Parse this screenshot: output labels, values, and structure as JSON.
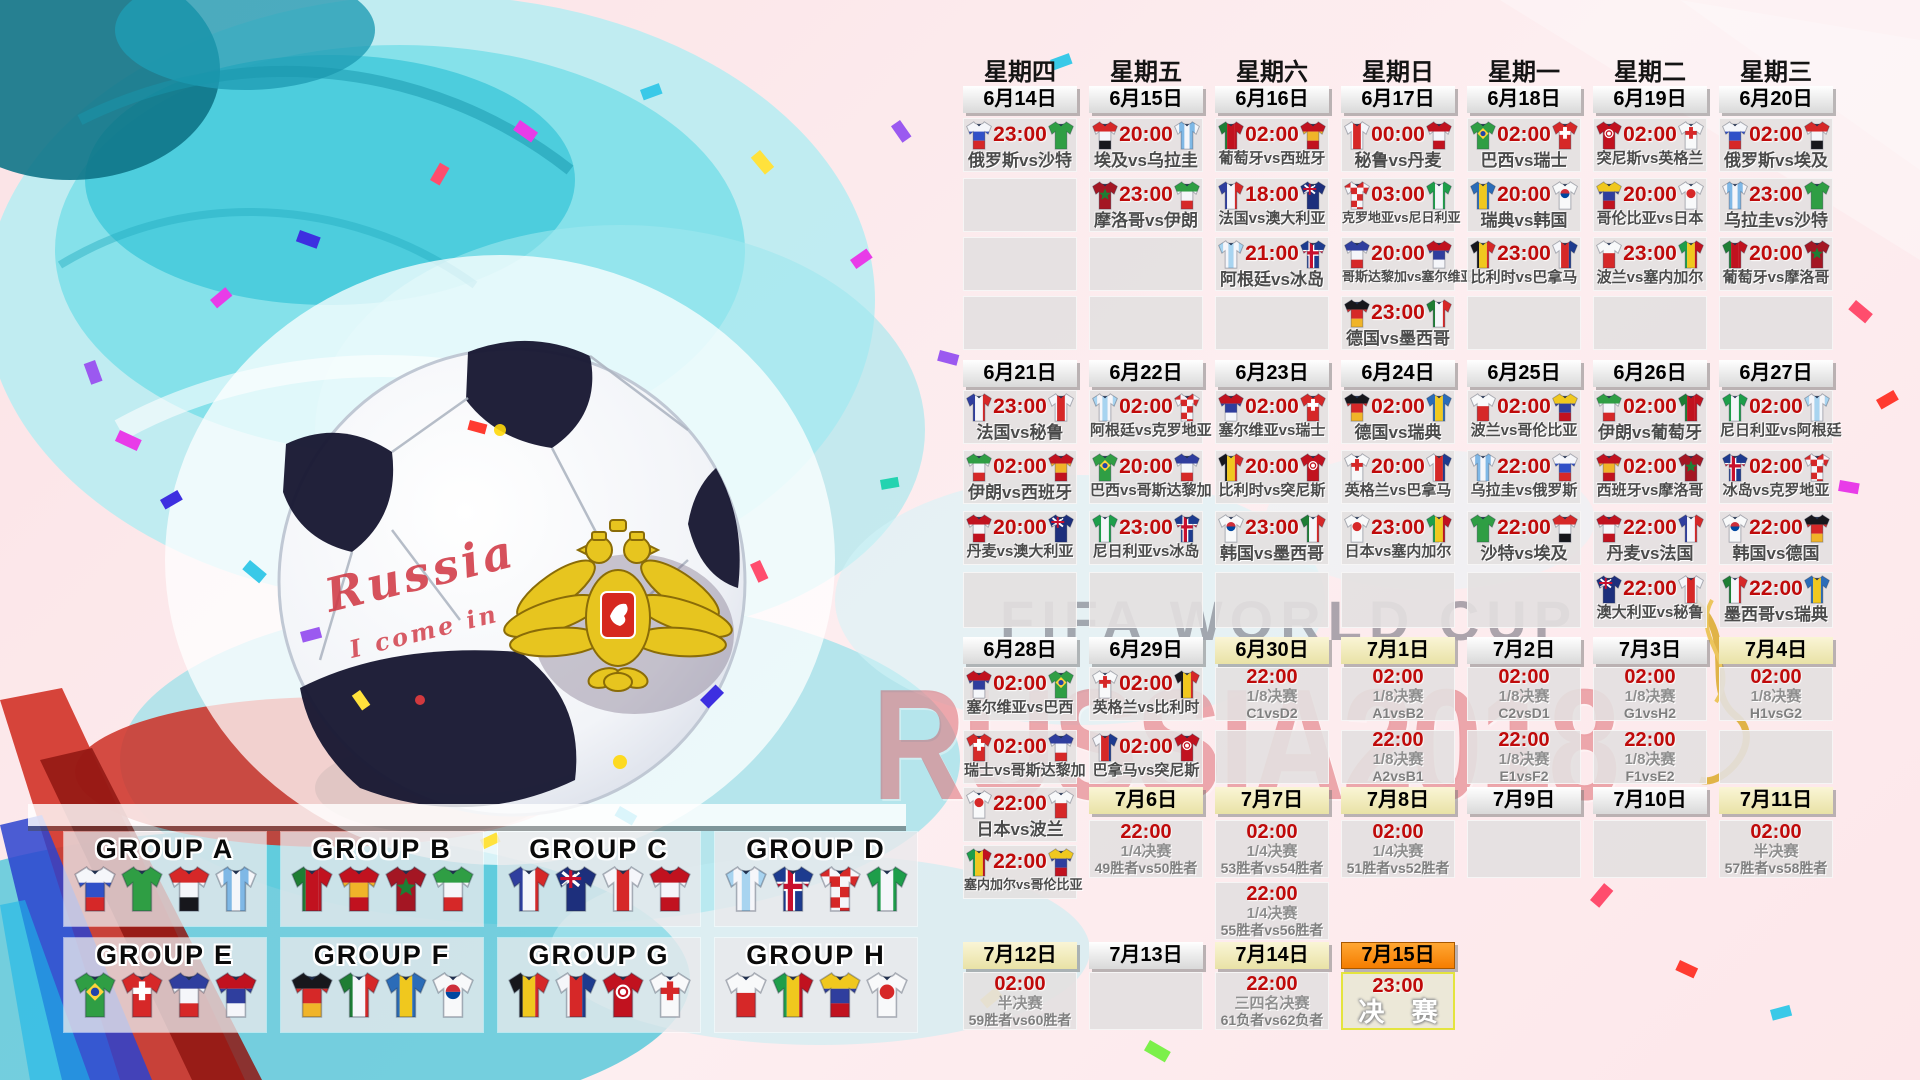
{
  "watermark": {
    "line1": "FIFA WORLD CUP",
    "line2": "RUSSIA2018"
  },
  "ball": {
    "script1": "Russia",
    "script2": "I come in"
  },
  "weekdays": [
    "星期四",
    "星期五",
    "星期六",
    "星期日",
    "星期一",
    "星期二",
    "星期三"
  ],
  "date_bars": [
    {
      "col": 1,
      "row": "b1",
      "label": "6月14日",
      "style": "plain"
    },
    {
      "col": 2,
      "row": "b1",
      "label": "6月15日",
      "style": "plain"
    },
    {
      "col": 3,
      "row": "b1",
      "label": "6月16日",
      "style": "plain"
    },
    {
      "col": 4,
      "row": "b1",
      "label": "6月17日",
      "style": "plain"
    },
    {
      "col": 5,
      "row": "b1",
      "label": "6月18日",
      "style": "plain"
    },
    {
      "col": 6,
      "row": "b1",
      "label": "6月19日",
      "style": "plain"
    },
    {
      "col": 7,
      "row": "b1",
      "label": "6月20日",
      "style": "plain"
    },
    {
      "col": 1,
      "row": "b2",
      "label": "6月21日",
      "style": "plain"
    },
    {
      "col": 2,
      "row": "b2",
      "label": "6月22日",
      "style": "plain"
    },
    {
      "col": 3,
      "row": "b2",
      "label": "6月23日",
      "style": "plain"
    },
    {
      "col": 4,
      "row": "b2",
      "label": "6月24日",
      "style": "plain"
    },
    {
      "col": 5,
      "row": "b2",
      "label": "6月25日",
      "style": "plain"
    },
    {
      "col": 6,
      "row": "b2",
      "label": "6月26日",
      "style": "plain"
    },
    {
      "col": 7,
      "row": "b2",
      "label": "6月27日",
      "style": "plain"
    },
    {
      "col": 1,
      "row": "b3",
      "label": "6月28日",
      "style": "plain"
    },
    {
      "col": 2,
      "row": "b3",
      "label": "6月29日",
      "style": "plain"
    },
    {
      "col": 3,
      "row": "b3",
      "label": "6月30日",
      "style": "yellow"
    },
    {
      "col": 4,
      "row": "b3",
      "label": "7月1日",
      "style": "yellow"
    },
    {
      "col": 5,
      "row": "b3",
      "label": "7月2日",
      "style": "plain"
    },
    {
      "col": 6,
      "row": "b3",
      "label": "7月3日",
      "style": "plain"
    },
    {
      "col": 7,
      "row": "b3",
      "label": "7月4日",
      "style": "yellow"
    },
    {
      "col": 2,
      "row": "b4",
      "label": "7月6日",
      "style": "yellow"
    },
    {
      "col": 3,
      "row": "b4",
      "label": "7月7日",
      "style": "yellow"
    },
    {
      "col": 4,
      "row": "b4",
      "label": "7月8日",
      "style": "yellow"
    },
    {
      "col": 5,
      "row": "b4",
      "label": "7月9日",
      "style": "plain"
    },
    {
      "col": 6,
      "row": "b4",
      "label": "7月10日",
      "style": "plain"
    },
    {
      "col": 7,
      "row": "b4",
      "label": "7月11日",
      "style": "yellow"
    },
    {
      "col": 1,
      "row": "b5",
      "label": "7月12日",
      "style": "yellow"
    },
    {
      "col": 2,
      "row": "b5",
      "label": "7月13日",
      "style": "plain"
    },
    {
      "col": 3,
      "row": "b5",
      "label": "7月14日",
      "style": "yellow"
    },
    {
      "col": 4,
      "row": "b5",
      "label": "7月15日",
      "style": "orange"
    }
  ],
  "cells": [
    {
      "col": 1,
      "row": "r1",
      "type": "match",
      "time": "23:00",
      "home": "俄罗斯",
      "away": "沙特"
    },
    {
      "col": 1,
      "row": "r2",
      "type": "empty"
    },
    {
      "col": 1,
      "row": "r3",
      "type": "empty"
    },
    {
      "col": 1,
      "row": "r4",
      "type": "empty"
    },
    {
      "col": 2,
      "row": "r1",
      "type": "match",
      "time": "20:00",
      "home": "埃及",
      "away": "乌拉圭"
    },
    {
      "col": 2,
      "row": "r2",
      "type": "match",
      "time": "23:00",
      "home": "摩洛哥",
      "away": "伊朗"
    },
    {
      "col": 2,
      "row": "r3",
      "type": "empty"
    },
    {
      "col": 2,
      "row": "r4",
      "type": "empty"
    },
    {
      "col": 3,
      "row": "r1",
      "type": "match",
      "time": "02:00",
      "home": "葡萄牙",
      "away": "西班牙"
    },
    {
      "col": 3,
      "row": "r2",
      "type": "match",
      "time": "18:00",
      "home": "法国",
      "away": "澳大利亚"
    },
    {
      "col": 3,
      "row": "r3",
      "type": "match",
      "time": "21:00",
      "home": "阿根廷",
      "away": "冰岛"
    },
    {
      "col": 3,
      "row": "r4",
      "type": "empty"
    },
    {
      "col": 4,
      "row": "r1",
      "type": "match",
      "time": "00:00",
      "home": "秘鲁",
      "away": "丹麦"
    },
    {
      "col": 4,
      "row": "r2",
      "type": "match",
      "time": "03:00",
      "home": "克罗地亚",
      "away": "尼日利亚"
    },
    {
      "col": 4,
      "row": "r3",
      "type": "match",
      "time": "20:00",
      "home": "哥斯达黎加",
      "away": "塞尔维亚"
    },
    {
      "col": 4,
      "row": "r4",
      "type": "match",
      "time": "23:00",
      "home": "德国",
      "away": "墨西哥"
    },
    {
      "col": 5,
      "row": "r1",
      "type": "match",
      "time": "02:00",
      "home": "巴西",
      "away": "瑞士"
    },
    {
      "col": 5,
      "row": "r2",
      "type": "match",
      "time": "20:00",
      "home": "瑞典",
      "away": "韩国"
    },
    {
      "col": 5,
      "row": "r3",
      "type": "match",
      "time": "23:00",
      "home": "比利时",
      "away": "巴拿马"
    },
    {
      "col": 5,
      "row": "r4",
      "type": "empty"
    },
    {
      "col": 6,
      "row": "r1",
      "type": "match",
      "time": "02:00",
      "home": "突尼斯",
      "away": "英格兰"
    },
    {
      "col": 6,
      "row": "r2",
      "type": "match",
      "time": "20:00",
      "home": "哥伦比亚",
      "away": "日本"
    },
    {
      "col": 6,
      "row": "r3",
      "type": "match",
      "time": "23:00",
      "home": "波兰",
      "away": "塞内加尔"
    },
    {
      "col": 6,
      "row": "r4",
      "type": "empty"
    },
    {
      "col": 7,
      "row": "r1",
      "type": "match",
      "time": "02:00",
      "home": "俄罗斯",
      "away": "埃及"
    },
    {
      "col": 7,
      "row": "r2",
      "type": "match",
      "time": "23:00",
      "home": "乌拉圭",
      "away": "沙特"
    },
    {
      "col": 7,
      "row": "r3",
      "type": "match",
      "time": "20:00",
      "home": "葡萄牙",
      "away": "摩洛哥"
    },
    {
      "col": 7,
      "row": "r4",
      "type": "empty"
    },
    {
      "col": 1,
      "row": "r5",
      "type": "match",
      "time": "23:00",
      "home": "法国",
      "away": "秘鲁"
    },
    {
      "col": 1,
      "row": "r6",
      "type": "match",
      "time": "02:00",
      "home": "伊朗",
      "away": "西班牙"
    },
    {
      "col": 1,
      "row": "r7",
      "type": "match",
      "time": "20:00",
      "home": "丹麦",
      "away": "澳大利亚"
    },
    {
      "col": 1,
      "row": "r8",
      "type": "empty"
    },
    {
      "col": 2,
      "row": "r5",
      "type": "match",
      "time": "02:00",
      "home": "阿根廷",
      "away": "克罗地亚"
    },
    {
      "col": 2,
      "row": "r6",
      "type": "match",
      "time": "20:00",
      "home": "巴西",
      "away": "哥斯达黎加"
    },
    {
      "col": 2,
      "row": "r7",
      "type": "match",
      "time": "23:00",
      "home": "尼日利亚",
      "away": "冰岛"
    },
    {
      "col": 2,
      "row": "r8",
      "type": "empty"
    },
    {
      "col": 3,
      "row": "r5",
      "type": "match",
      "time": "02:00",
      "home": "塞尔维亚",
      "away": "瑞士"
    },
    {
      "col": 3,
      "row": "r6",
      "type": "match",
      "time": "20:00",
      "home": "比利时",
      "away": "突尼斯"
    },
    {
      "col": 3,
      "row": "r7",
      "type": "match",
      "time": "23:00",
      "home": "韩国",
      "away": "墨西哥"
    },
    {
      "col": 3,
      "row": "r8",
      "type": "empty"
    },
    {
      "col": 4,
      "row": "r5",
      "type": "match",
      "time": "02:00",
      "home": "德国",
      "away": "瑞典"
    },
    {
      "col": 4,
      "row": "r6",
      "type": "match",
      "time": "20:00",
      "home": "英格兰",
      "away": "巴拿马"
    },
    {
      "col": 4,
      "row": "r7",
      "type": "match",
      "time": "23:00",
      "home": "日本",
      "away": "塞内加尔"
    },
    {
      "col": 4,
      "row": "r8",
      "type": "empty"
    },
    {
      "col": 5,
      "row": "r5",
      "type": "match",
      "time": "02:00",
      "home": "波兰",
      "away": "哥伦比亚"
    },
    {
      "col": 5,
      "row": "r6",
      "type": "match",
      "time": "22:00",
      "home": "乌拉圭",
      "away": "俄罗斯"
    },
    {
      "col": 5,
      "row": "r7",
      "type": "match",
      "time": "22:00",
      "home": "沙特",
      "away": "埃及"
    },
    {
      "col": 5,
      "row": "r8",
      "type": "empty"
    },
    {
      "col": 6,
      "row": "r5",
      "type": "match",
      "time": "02:00",
      "home": "伊朗",
      "away": "葡萄牙"
    },
    {
      "col": 6,
      "row": "r6",
      "type": "match",
      "time": "02:00",
      "home": "西班牙",
      "away": "摩洛哥"
    },
    {
      "col": 6,
      "row": "r7",
      "type": "match",
      "time": "22:00",
      "home": "丹麦",
      "away": "法国"
    },
    {
      "col": 6,
      "row": "r8",
      "type": "match",
      "time": "22:00",
      "home": "澳大利亚",
      "away": "秘鲁"
    },
    {
      "col": 7,
      "row": "r5",
      "type": "match",
      "time": "02:00",
      "home": "尼日利亚",
      "away": "阿根廷"
    },
    {
      "col": 7,
      "row": "r6",
      "type": "match",
      "time": "02:00",
      "home": "冰岛",
      "away": "克罗地亚"
    },
    {
      "col": 7,
      "row": "r7",
      "type": "match",
      "time": "22:00",
      "home": "韩国",
      "away": "德国"
    },
    {
      "col": 7,
      "row": "r8",
      "type": "match",
      "time": "22:00",
      "home": "墨西哥",
      "away": "瑞典"
    },
    {
      "col": 1,
      "row": "r9",
      "type": "match",
      "time": "02:00",
      "home": "塞尔维亚",
      "away": "巴西"
    },
    {
      "col": 1,
      "row": "r10",
      "type": "match",
      "time": "02:00",
      "home": "瑞士",
      "away": "哥斯达黎加"
    },
    {
      "col": 1,
      "row": "r11",
      "type": "match",
      "time": "22:00",
      "home": "日本",
      "away": "波兰"
    },
    {
      "col": 1,
      "row": "r13",
      "type": "match",
      "time": "22:00",
      "home": "塞内加尔",
      "away": "哥伦比亚"
    },
    {
      "col": 2,
      "row": "r9",
      "type": "match",
      "time": "02:00",
      "home": "英格兰",
      "away": "比利时"
    },
    {
      "col": 2,
      "row": "r10",
      "type": "match",
      "time": "02:00",
      "home": "巴拿马",
      "away": "突尼斯"
    },
    {
      "col": 2,
      "row": "r12",
      "type": "stage",
      "time": "22:00",
      "stage": "1/4决赛",
      "pair": "49胜者vs50胜者"
    },
    {
      "col": 3,
      "row": "r9",
      "type": "stage",
      "time": "22:00",
      "stage": "1/8决赛",
      "pair": "C1vsD2"
    },
    {
      "col": 3,
      "row": "r10",
      "type": "empty"
    },
    {
      "col": 3,
      "row": "r12",
      "type": "stage",
      "time": "02:00",
      "stage": "1/4决赛",
      "pair": "53胜者vs54胜者"
    },
    {
      "col": 3,
      "row": "r14",
      "type": "stage",
      "time": "22:00",
      "stage": "1/4决赛",
      "pair": "55胜者vs56胜者"
    },
    {
      "col": 4,
      "row": "r9",
      "type": "stage",
      "time": "02:00",
      "stage": "1/8决赛",
      "pair": "A1vsB2"
    },
    {
      "col": 4,
      "row": "r10",
      "type": "stage",
      "time": "22:00",
      "stage": "1/8决赛",
      "pair": "A2vsB1"
    },
    {
      "col": 4,
      "row": "r12",
      "type": "stage",
      "time": "02:00",
      "stage": "1/4决赛",
      "pair": "51胜者vs52胜者"
    },
    {
      "col": 5,
      "row": "r9",
      "type": "stage",
      "time": "02:00",
      "stage": "1/8决赛",
      "pair": "C2vsD1"
    },
    {
      "col": 5,
      "row": "r10",
      "type": "stage",
      "time": "22:00",
      "stage": "1/8决赛",
      "pair": "E1vsF2"
    },
    {
      "col": 5,
      "row": "r12",
      "type": "empty"
    },
    {
      "col": 6,
      "row": "r9",
      "type": "stage",
      "time": "02:00",
      "stage": "1/8决赛",
      "pair": "G1vsH2"
    },
    {
      "col": 6,
      "row": "r10",
      "type": "stage",
      "time": "22:00",
      "stage": "1/8决赛",
      "pair": "F1vsE2"
    },
    {
      "col": 6,
      "row": "r12",
      "type": "empty"
    },
    {
      "col": 7,
      "row": "r9",
      "type": "stage",
      "time": "02:00",
      "stage": "1/8决赛",
      "pair": "H1vsG2"
    },
    {
      "col": 7,
      "row": "r10",
      "type": "empty"
    },
    {
      "col": 7,
      "row": "r12",
      "type": "stage",
      "time": "02:00",
      "stage": "半决赛",
      "pair": "57胜者vs58胜者"
    },
    {
      "col": 1,
      "row": "r15",
      "type": "stage",
      "time": "02:00",
      "stage": "半决赛",
      "pair": "59胜者vs60胜者"
    },
    {
      "col": 2,
      "row": "r15",
      "type": "empty"
    },
    {
      "col": 3,
      "row": "r15",
      "type": "stage",
      "time": "22:00",
      "stage": "三四名决赛",
      "pair": "61负者vs62负者"
    },
    {
      "col": 4,
      "row": "r15",
      "type": "final",
      "time": "23:00",
      "label": "决 赛"
    }
  ],
  "groups": [
    {
      "label": "GROUP A",
      "teams": [
        "俄罗斯",
        "沙特",
        "埃及",
        "乌拉圭"
      ]
    },
    {
      "label": "GROUP B",
      "teams": [
        "葡萄牙",
        "西班牙",
        "摩洛哥",
        "伊朗"
      ]
    },
    {
      "label": "GROUP C",
      "teams": [
        "法国",
        "澳大利亚",
        "秘鲁",
        "丹麦"
      ]
    },
    {
      "label": "GROUP D",
      "teams": [
        "阿根廷",
        "冰岛",
        "克罗地亚",
        "尼日利亚"
      ]
    },
    {
      "label": "GROUP E",
      "teams": [
        "巴西",
        "瑞士",
        "哥斯达黎加",
        "塞尔维亚"
      ]
    },
    {
      "label": "GROUP F",
      "teams": [
        "德国",
        "墨西哥",
        "瑞典",
        "韩国"
      ]
    },
    {
      "label": "GROUP G",
      "teams": [
        "比利时",
        "巴拿马",
        "突尼斯",
        "英格兰"
      ]
    },
    {
      "label": "GROUP H",
      "teams": [
        "波兰",
        "塞内加尔",
        "哥伦比亚",
        "日本"
      ]
    }
  ],
  "jerseys": {
    "俄罗斯": {
      "style": "h3",
      "colors": [
        "#f5f6fa",
        "#3050c8",
        "#d62828"
      ]
    },
    "沙特": {
      "style": "solid",
      "colors": [
        "#2f9e44"
      ]
    },
    "埃及": {
      "style": "h3",
      "colors": [
        "#d62828",
        "#f5f6fa",
        "#17171c"
      ]
    },
    "乌拉圭": {
      "style": "stripes",
      "colors": [
        "#f5f6fa",
        "#7fb8e6"
      ]
    },
    "葡萄牙": {
      "style": "v3",
      "colors": [
        "#1e7e34",
        "#c1121f",
        "#c1121f"
      ]
    },
    "西班牙": {
      "style": "h3",
      "colors": [
        "#c1121f",
        "#f0b429",
        "#c1121f"
      ]
    },
    "摩洛哥": {
      "style": "solid",
      "colors": [
        "#a41623"
      ],
      "emblem": "star",
      "ecolor": "#1e7e34"
    },
    "伊朗": {
      "style": "h3",
      "colors": [
        "#2f9e44",
        "#f5f6fa",
        "#d62828"
      ]
    },
    "法国": {
      "style": "v3",
      "colors": [
        "#2f3e9e",
        "#f5f6fa",
        "#d62828"
      ]
    },
    "澳大利亚": {
      "style": "solid",
      "colors": [
        "#1d2f7c"
      ],
      "emblem": "jack"
    },
    "秘鲁": {
      "style": "v3",
      "colors": [
        "#f5f6fa",
        "#d62828",
        "#f5f6fa"
      ]
    },
    "丹麦": {
      "style": "h3",
      "colors": [
        "#c1121f",
        "#f5f6fa",
        "#c1121f"
      ]
    },
    "阿根廷": {
      "style": "stripes",
      "colors": [
        "#a8d4f0",
        "#f5f6fa"
      ]
    },
    "冰岛": {
      "style": "solid",
      "colors": [
        "#1d3b8f"
      ],
      "emblem": "nordic"
    },
    "克罗地亚": {
      "style": "check",
      "colors": [
        "#d62828",
        "#f5f6fa"
      ]
    },
    "尼日利亚": {
      "style": "v3",
      "colors": [
        "#1e9e4a",
        "#f5f6fa",
        "#1e9e4a"
      ]
    },
    "巴西": {
      "style": "solid",
      "colors": [
        "#2f9e44"
      ],
      "emblem": "diamond",
      "ecolor": "#ffd43b"
    },
    "瑞士": {
      "style": "solid",
      "colors": [
        "#d62828"
      ],
      "emblem": "cross",
      "ecolor": "#ffffff"
    },
    "哥斯达黎加": {
      "style": "h3",
      "colors": [
        "#2f3e9e",
        "#f5f6fa",
        "#d62828"
      ]
    },
    "塞尔维亚": {
      "style": "h3",
      "colors": [
        "#c1121f",
        "#2f3e9e",
        "#f5f6fa"
      ]
    },
    "德国": {
      "style": "h3",
      "colors": [
        "#17171c",
        "#d62828",
        "#f0b429"
      ]
    },
    "墨西哥": {
      "style": "v3",
      "colors": [
        "#1e7e34",
        "#f5f6fa",
        "#d62828"
      ]
    },
    "瑞典": {
      "style": "v3",
      "colors": [
        "#2b6cb8",
        "#f0c81e",
        "#2b6cb8"
      ]
    },
    "韩国": {
      "style": "solid",
      "colors": [
        "#f8f9fa"
      ],
      "emblem": "taeguk"
    },
    "比利时": {
      "style": "v3",
      "colors": [
        "#17171c",
        "#f0c81e",
        "#d62828"
      ]
    },
    "巴拿马": {
      "style": "v3",
      "colors": [
        "#f5f6fa",
        "#d62828",
        "#1d3b8f"
      ]
    },
    "突尼斯": {
      "style": "solid",
      "colors": [
        "#c1121f"
      ],
      "emblem": "ring"
    },
    "英格兰": {
      "style": "solid",
      "colors": [
        "#f8f9fa"
      ],
      "emblem": "cross",
      "ecolor": "#d62828"
    },
    "波兰": {
      "style": "h2",
      "colors": [
        "#f8f9fa",
        "#d62828"
      ]
    },
    "塞内加尔": {
      "style": "v3",
      "colors": [
        "#1e9e4a",
        "#f0c81e",
        "#c1121f"
      ]
    },
    "哥伦比亚": {
      "style": "h3",
      "colors": [
        "#f0c81e",
        "#2f3e9e",
        "#c1121f"
      ]
    },
    "日本": {
      "style": "solid",
      "colors": [
        "#f8f9fa"
      ],
      "emblem": "circle",
      "ecolor": "#d62828"
    }
  },
  "colors": {
    "time_red": "#bf0a0a",
    "bar_orange": "#f57d00",
    "bar_yellow": "#f1ecc0",
    "watermark_red": "#d02a34"
  }
}
